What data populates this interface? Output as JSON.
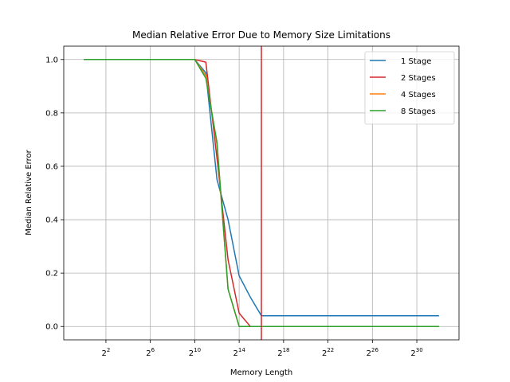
{
  "chart_data": {
    "type": "line",
    "title": "Median Relative Error Due to Memory Size Limitations",
    "xlabel": "Memory Length",
    "ylabel": "Median Relative Error",
    "x_scale": "log2",
    "xlim_exp": [
      -1.8,
      33.8
    ],
    "ylim": [
      -0.05,
      1.05
    ],
    "grid": true,
    "legend_position": "top-right",
    "x_ticks": [
      {
        "base": "2",
        "exp": "2",
        "value_exp": 2
      },
      {
        "base": "2",
        "exp": "6",
        "value_exp": 6
      },
      {
        "base": "2",
        "exp": "10",
        "value_exp": 10
      },
      {
        "base": "2",
        "exp": "14",
        "value_exp": 14
      },
      {
        "base": "2",
        "exp": "18",
        "value_exp": 18
      },
      {
        "base": "2",
        "exp": "22",
        "value_exp": 22
      },
      {
        "base": "2",
        "exp": "26",
        "value_exp": 26
      },
      {
        "base": "2",
        "exp": "30",
        "value_exp": 30
      }
    ],
    "y_ticks": [
      {
        "value": 0.0,
        "label": "0.0"
      },
      {
        "value": 0.2,
        "label": "0.2"
      },
      {
        "value": 0.4,
        "label": "0.4"
      },
      {
        "value": 0.6,
        "label": "0.6"
      },
      {
        "value": 0.8,
        "label": "0.8"
      },
      {
        "value": 1.0,
        "label": "1.0"
      }
    ],
    "vline": {
      "x_exp": 16,
      "color": "#d62728"
    },
    "series": [
      {
        "name": "1 Stage",
        "color": "#1f77b4",
        "x_exp": [
          0,
          1,
          2,
          3,
          4,
          5,
          6,
          7,
          8,
          9,
          10,
          11,
          12,
          13,
          14,
          15,
          16,
          17,
          18,
          19,
          20,
          21,
          22,
          23,
          24,
          25,
          26,
          27,
          28,
          29,
          30,
          31,
          32
        ],
        "values": [
          1,
          1,
          1,
          1,
          1,
          1,
          1,
          1,
          1,
          1,
          1,
          0.95,
          0.55,
          0.4,
          0.19,
          0.11,
          0.04,
          0.04,
          0.04,
          0.04,
          0.04,
          0.04,
          0.04,
          0.04,
          0.04,
          0.04,
          0.04,
          0.04,
          0.04,
          0.04,
          0.04,
          0.04,
          0.04
        ]
      },
      {
        "name": "2 Stages",
        "color": "#d62728",
        "x_exp": [
          0,
          1,
          2,
          3,
          4,
          5,
          6,
          7,
          8,
          9,
          10,
          11,
          12,
          13,
          14,
          15,
          16,
          17,
          18,
          19,
          20,
          21,
          22,
          23,
          24,
          25,
          26,
          27,
          28,
          29,
          30,
          31,
          32
        ],
        "values": [
          1,
          1,
          1,
          1,
          1,
          1,
          1,
          1,
          1,
          1,
          1,
          0.99,
          0.63,
          0.25,
          0.05,
          0,
          0,
          0,
          0,
          0,
          0,
          0,
          0,
          0,
          0,
          0,
          0,
          0,
          0,
          0,
          0,
          0,
          0
        ]
      },
      {
        "name": "4 Stages",
        "color": "#ff7f0e",
        "x_exp": [
          0,
          1,
          2,
          3,
          4,
          5,
          6,
          7,
          8,
          9,
          10,
          11,
          12,
          13,
          14,
          15,
          16,
          17,
          18,
          19,
          20,
          21,
          22,
          23,
          24,
          25,
          26,
          27,
          28,
          29,
          30,
          31,
          32
        ],
        "values": [
          1,
          1,
          1,
          1,
          1,
          1,
          1,
          1,
          1,
          1,
          1,
          0.94,
          0.68,
          0.14,
          0,
          0,
          0,
          0,
          0,
          0,
          0,
          0,
          0,
          0,
          0,
          0,
          0,
          0,
          0,
          0,
          0,
          0,
          0
        ]
      },
      {
        "name": "8 Stages",
        "color": "#2ca02c",
        "x_exp": [
          0,
          1,
          2,
          3,
          4,
          5,
          6,
          7,
          8,
          9,
          10,
          11,
          12,
          13,
          14,
          15,
          16,
          17,
          18,
          19,
          20,
          21,
          22,
          23,
          24,
          25,
          26,
          27,
          28,
          29,
          30,
          31,
          32
        ],
        "values": [
          1,
          1,
          1,
          1,
          1,
          1,
          1,
          1,
          1,
          1,
          1,
          0.93,
          0.69,
          0.14,
          0,
          0,
          0,
          0,
          0,
          0,
          0,
          0,
          0,
          0,
          0,
          0,
          0,
          0,
          0,
          0,
          0,
          0,
          0
        ]
      }
    ]
  }
}
